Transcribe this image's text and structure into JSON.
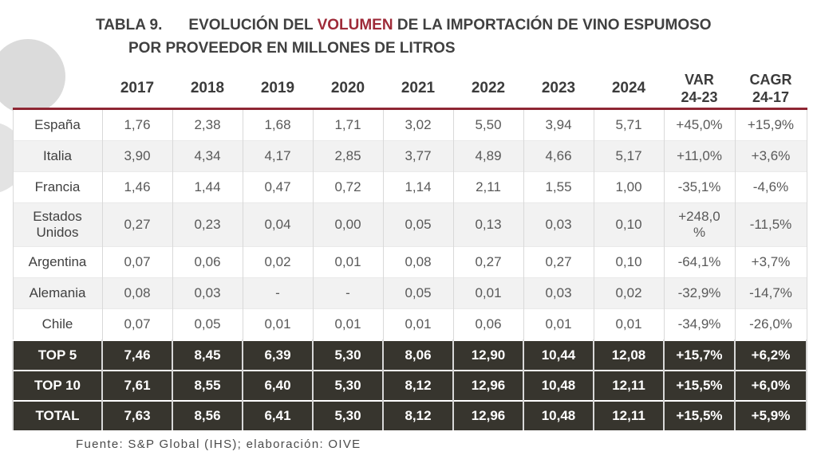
{
  "title": {
    "label": "TABLA 9.",
    "before_highlight": "EVOLUCIÓN DEL ",
    "highlight": "VOLUMEN",
    "after_highlight": " DE LA IMPORTACIÓN DE VINO ESPUMOSO",
    "line2": "POR PROVEEDOR EN MILLONES DE LITROS"
  },
  "footer": "Fuente: S&P Global (IHS); elaboración: OIVE",
  "colors": {
    "highlight_red": "#9E2A38",
    "header_rule_red": "#8E2633",
    "dark_row_bg": "#37352E",
    "zebra_row_bg": "#F2F2F2",
    "body_text": "#595959",
    "header_text": "#3B3B3B",
    "title_text": "#404040"
  },
  "chart_data": {
    "type": "table",
    "title": "TABLA 9. EVOLUCIÓN DEL VOLUMEN DE LA IMPORTACIÓN DE VINO ESPUMOSO POR PROVEEDOR EN MILLONES DE LITROS",
    "units": "millones de litros",
    "columns": [
      "",
      "2017",
      "2018",
      "2019",
      "2020",
      "2021",
      "2022",
      "2023",
      "2024",
      "VAR\n24-23",
      "CAGR\n24-17"
    ],
    "rows": [
      {
        "label": "España",
        "type": "data",
        "values": [
          "1,76",
          "2,38",
          "1,68",
          "1,71",
          "3,02",
          "5,50",
          "3,94",
          "5,71",
          "+45,0%",
          "+15,9%"
        ]
      },
      {
        "label": "Italia",
        "type": "data",
        "values": [
          "3,90",
          "4,34",
          "4,17",
          "2,85",
          "3,77",
          "4,89",
          "4,66",
          "5,17",
          "+11,0%",
          "+3,6%"
        ]
      },
      {
        "label": "Francia",
        "type": "data",
        "values": [
          "1,46",
          "1,44",
          "0,47",
          "0,72",
          "1,14",
          "2,11",
          "1,55",
          "1,00",
          "-35,1%",
          "-4,6%"
        ]
      },
      {
        "label": "Estados\nUnidos",
        "type": "data",
        "values": [
          "0,27",
          "0,23",
          "0,04",
          "0,00",
          "0,05",
          "0,13",
          "0,03",
          "0,10",
          "+248,0\n%",
          "-11,5%"
        ]
      },
      {
        "label": "Argentina",
        "type": "data",
        "values": [
          "0,07",
          "0,06",
          "0,02",
          "0,01",
          "0,08",
          "0,27",
          "0,27",
          "0,10",
          "-64,1%",
          "+3,7%"
        ]
      },
      {
        "label": "Alemania",
        "type": "data",
        "values": [
          "0,08",
          "0,03",
          "-",
          "-",
          "0,05",
          "0,01",
          "0,03",
          "0,02",
          "-32,9%",
          "-14,7%"
        ]
      },
      {
        "label": "Chile",
        "type": "data",
        "values": [
          "0,07",
          "0,05",
          "0,01",
          "0,01",
          "0,01",
          "0,06",
          "0,01",
          "0,01",
          "-34,9%",
          "-26,0%"
        ]
      },
      {
        "label": "TOP 5",
        "type": "total",
        "values": [
          "7,46",
          "8,45",
          "6,39",
          "5,30",
          "8,06",
          "12,90",
          "10,44",
          "12,08",
          "+15,7%",
          "+6,2%"
        ]
      },
      {
        "label": "TOP 10",
        "type": "total",
        "values": [
          "7,61",
          "8,55",
          "6,40",
          "5,30",
          "8,12",
          "12,96",
          "10,48",
          "12,11",
          "+15,5%",
          "+6,0%"
        ]
      },
      {
        "label": "TOTAL",
        "type": "total",
        "values": [
          "7,63",
          "8,56",
          "6,41",
          "5,30",
          "8,12",
          "12,96",
          "10,48",
          "12,11",
          "+15,5%",
          "+5,9%"
        ]
      }
    ],
    "source": "Fuente: S&P Global (IHS); elaboración: OIVE"
  }
}
